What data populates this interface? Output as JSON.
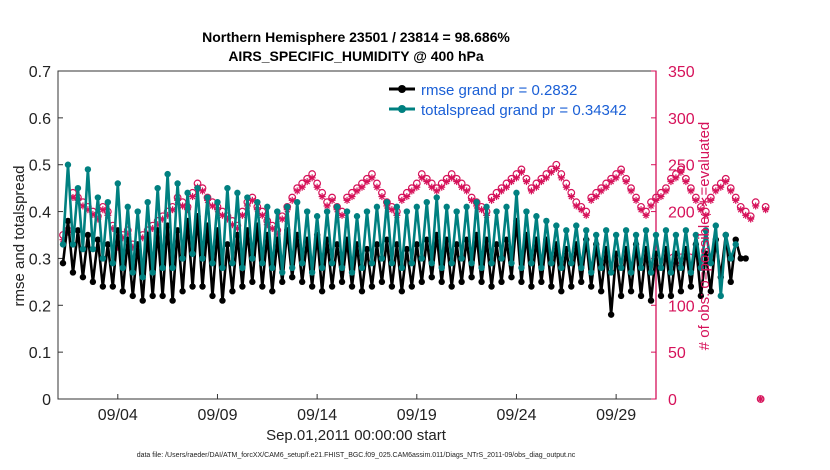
{
  "chart_data": {
    "type": "line",
    "title": "Northern Hemisphere 23501 / 23814 = 98.686%",
    "subtitle": "AIRS_SPECIFIC_HUMIDITY @ 400 hPa",
    "xlabel": "Sep.01,2011 00:00:00 start",
    "ylabel": "rmse and totalspread",
    "ylabel_right": "# of obs: o=possible; ∗=evaluated",
    "footnote": "data file: /Users/raeder/DAI/ATM_forcXX/CAM6_setup/f.e21.FHIST_BGC.f09_025.CAM6assim.011/Diags_NTrS_2011-09/obs_diag_output.nc",
    "xlim": [
      1,
      31
    ],
    "ylim": [
      0,
      0.7
    ],
    "ylim_right": [
      0,
      350
    ],
    "x_ticks": [
      4,
      9,
      14,
      19,
      24,
      29
    ],
    "x_tick_labels": [
      "09/04",
      "09/09",
      "09/14",
      "09/19",
      "09/24",
      "09/29"
    ],
    "y_ticks": [
      0,
      0.1,
      0.2,
      0.3,
      0.4,
      0.5,
      0.6,
      0.7
    ],
    "y_tick_labels": [
      "0",
      "0.1",
      "0.2",
      "0.3",
      "0.4",
      "0.5",
      "0.6",
      "0.7"
    ],
    "y_ticks_right": [
      0,
      50,
      100,
      150,
      200,
      250,
      300,
      350
    ],
    "y_tick_labels_right": [
      "0",
      "50",
      "100",
      "150",
      "200",
      "250",
      "300",
      "350"
    ],
    "colors": {
      "rmse": "#000000",
      "spread": "#008080",
      "obs": "#d6125a",
      "legend_text": "#1a5fd6"
    },
    "x_start": 1.25,
    "x_step": 0.25,
    "series": [
      {
        "name": "rmse grand pr = 0.2832",
        "key": "rmse",
        "values": [
          0.29,
          0.38,
          0.27,
          0.36,
          0.26,
          0.35,
          0.25,
          0.34,
          0.24,
          0.33,
          0.24,
          0.36,
          0.23,
          0.34,
          0.22,
          0.33,
          0.21,
          0.35,
          0.22,
          0.36,
          0.22,
          0.37,
          0.21,
          0.36,
          0.23,
          0.38,
          0.24,
          0.39,
          0.24,
          0.37,
          0.22,
          0.36,
          0.21,
          0.33,
          0.23,
          0.35,
          0.24,
          0.36,
          0.25,
          0.37,
          0.24,
          0.35,
          0.23,
          0.34,
          0.25,
          0.36,
          0.26,
          0.35,
          0.25,
          0.34,
          0.24,
          0.35,
          0.23,
          0.34,
          0.24,
          0.33,
          0.25,
          0.34,
          0.24,
          0.33,
          0.23,
          0.32,
          0.24,
          0.33,
          0.25,
          0.34,
          0.24,
          0.33,
          0.23,
          0.32,
          0.24,
          0.33,
          0.25,
          0.34,
          0.26,
          0.35,
          0.25,
          0.34,
          0.24,
          0.33,
          0.25,
          0.34,
          0.26,
          0.35,
          0.25,
          0.34,
          0.24,
          0.33,
          0.25,
          0.34,
          0.26,
          0.38,
          0.25,
          0.35,
          0.24,
          0.34,
          0.25,
          0.34,
          0.24,
          0.33,
          0.23,
          0.32,
          0.24,
          0.33,
          0.25,
          0.34,
          0.24,
          0.33,
          0.23,
          0.32,
          0.18,
          0.31,
          0.22,
          0.32,
          0.23,
          0.33,
          0.22,
          0.32,
          0.21,
          0.31,
          0.22,
          0.32,
          0.22,
          0.31,
          0.23,
          0.32,
          0.24,
          0.33,
          0.22,
          0.31,
          0.23,
          0.34,
          0.26,
          0.35,
          0.25,
          0.34,
          0.3,
          0.3
        ]
      },
      {
        "name": "totalspread grand pr = 0.34342",
        "key": "spread",
        "values": [
          0.33,
          0.5,
          0.33,
          0.45,
          0.32,
          0.49,
          0.32,
          0.43,
          0.3,
          0.42,
          0.29,
          0.46,
          0.28,
          0.41,
          0.27,
          0.4,
          0.26,
          0.42,
          0.27,
          0.45,
          0.28,
          0.48,
          0.28,
          0.46,
          0.3,
          0.44,
          0.31,
          0.45,
          0.3,
          0.43,
          0.29,
          0.42,
          0.28,
          0.45,
          0.29,
          0.44,
          0.28,
          0.43,
          0.3,
          0.42,
          0.29,
          0.41,
          0.28,
          0.4,
          0.27,
          0.41,
          0.28,
          0.42,
          0.29,
          0.4,
          0.27,
          0.39,
          0.28,
          0.4,
          0.29,
          0.41,
          0.28,
          0.4,
          0.27,
          0.39,
          0.28,
          0.4,
          0.29,
          0.41,
          0.3,
          0.42,
          0.29,
          0.41,
          0.28,
          0.4,
          0.29,
          0.41,
          0.3,
          0.42,
          0.29,
          0.43,
          0.28,
          0.41,
          0.29,
          0.4,
          0.3,
          0.41,
          0.29,
          0.42,
          0.28,
          0.41,
          0.29,
          0.4,
          0.3,
          0.41,
          0.29,
          0.44,
          0.28,
          0.4,
          0.29,
          0.39,
          0.28,
          0.38,
          0.29,
          0.37,
          0.28,
          0.36,
          0.29,
          0.37,
          0.28,
          0.36,
          0.27,
          0.35,
          0.28,
          0.36,
          0.27,
          0.35,
          0.28,
          0.36,
          0.27,
          0.35,
          0.28,
          0.36,
          0.27,
          0.35,
          0.28,
          0.36,
          0.27,
          0.35,
          0.28,
          0.36,
          0.27,
          0.35,
          0.28,
          0.36,
          0.29,
          0.37,
          0.22,
          0.35,
          0.3,
          0.33
        ]
      },
      {
        "name": "# of obs possible",
        "key": "possible",
        "axis": "right",
        "values": [
          175,
          180,
          220,
          215,
          210,
          205,
          200,
          195,
          205,
          200,
          185,
          165,
          175,
          180,
          165,
          160,
          175,
          180,
          185,
          190,
          195,
          200,
          205,
          215,
          210,
          205,
          220,
          230,
          225,
          215,
          210,
          205,
          200,
          195,
          190,
          185,
          200,
          210,
          215,
          205,
          200,
          190,
          185,
          180,
          195,
          205,
          215,
          225,
          230,
          235,
          240,
          230,
          220,
          210,
          215,
          205,
          200,
          215,
          220,
          225,
          230,
          235,
          240,
          230,
          220,
          210,
          205,
          200,
          215,
          220,
          225,
          230,
          240,
          235,
          230,
          225,
          230,
          235,
          240,
          235,
          230,
          225,
          215,
          210,
          205,
          200,
          215,
          220,
          225,
          230,
          235,
          240,
          245,
          235,
          225,
          230,
          235,
          240,
          245,
          250,
          240,
          230,
          220,
          210,
          205,
          200,
          215,
          220,
          225,
          230,
          235,
          240,
          245,
          235,
          225,
          215,
          205,
          200,
          210,
          215,
          220,
          225,
          235,
          240,
          245,
          235,
          225,
          215,
          205,
          200,
          215,
          225,
          230,
          235,
          225,
          215,
          205,
          200,
          195,
          210,
          0,
          205
        ]
      },
      {
        "name": "# of obs evaluated",
        "key": "evaluated",
        "axis": "right",
        "values": [
          170,
          178,
          215,
          212,
          206,
          202,
          197,
          192,
          202,
          196,
          182,
          162,
          172,
          176,
          162,
          157,
          172,
          176,
          182,
          186,
          192,
          196,
          202,
          212,
          206,
          202,
          216,
          226,
          222,
          212,
          206,
          202,
          196,
          192,
          186,
          182,
          196,
          206,
          212,
          202,
          196,
          186,
          182,
          176,
          192,
          202,
          212,
          222,
          226,
          232,
          236,
          226,
          216,
          206,
          212,
          202,
          196,
          212,
          216,
          222,
          226,
          232,
          236,
          226,
          216,
          206,
          202,
          196,
          212,
          216,
          222,
          226,
          236,
          232,
          226,
          222,
          226,
          232,
          236,
          232,
          226,
          222,
          212,
          206,
          202,
          196,
          212,
          216,
          222,
          226,
          232,
          236,
          242,
          232,
          222,
          226,
          232,
          236,
          242,
          246,
          236,
          226,
          216,
          206,
          202,
          196,
          212,
          216,
          222,
          226,
          232,
          236,
          242,
          232,
          222,
          212,
          202,
          196,
          206,
          212,
          216,
          222,
          232,
          236,
          242,
          232,
          222,
          212,
          202,
          196,
          212,
          222,
          226,
          232,
          222,
          212,
          202,
          196,
          192,
          206,
          0,
          202
        ]
      }
    ]
  }
}
